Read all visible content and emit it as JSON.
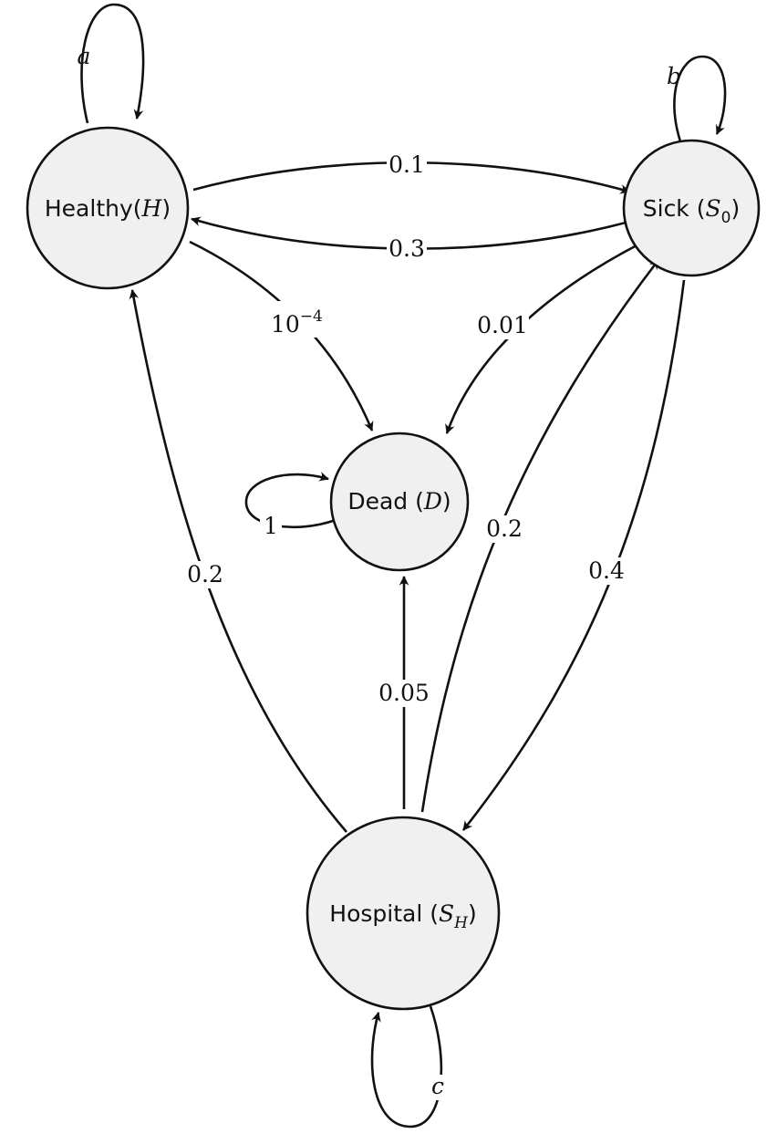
{
  "nodes": {
    "healthy": {
      "name": "Healthy",
      "symbol": "H",
      "sub": ""
    },
    "sick": {
      "name": "Sick ",
      "symbol": "S",
      "sub": "0"
    },
    "dead": {
      "name": "Dead ",
      "symbol": "D",
      "sub": ""
    },
    "hospital": {
      "name": "Hospital ",
      "symbol": "S",
      "sub": "H"
    }
  },
  "edges": {
    "healthy_self": "a",
    "sick_self": "b",
    "hospital_self": "c",
    "dead_self": "1",
    "healthy_to_sick": "0.1",
    "sick_to_healthy": "0.3",
    "healthy_to_dead_base": "10",
    "healthy_to_dead_exp": "−4",
    "sick_to_dead": "0.01",
    "hospital_to_healthy": "0.2",
    "hospital_to_sick": "0.2",
    "sick_to_hospital": "0.4",
    "hospital_to_dead": "0.05"
  }
}
